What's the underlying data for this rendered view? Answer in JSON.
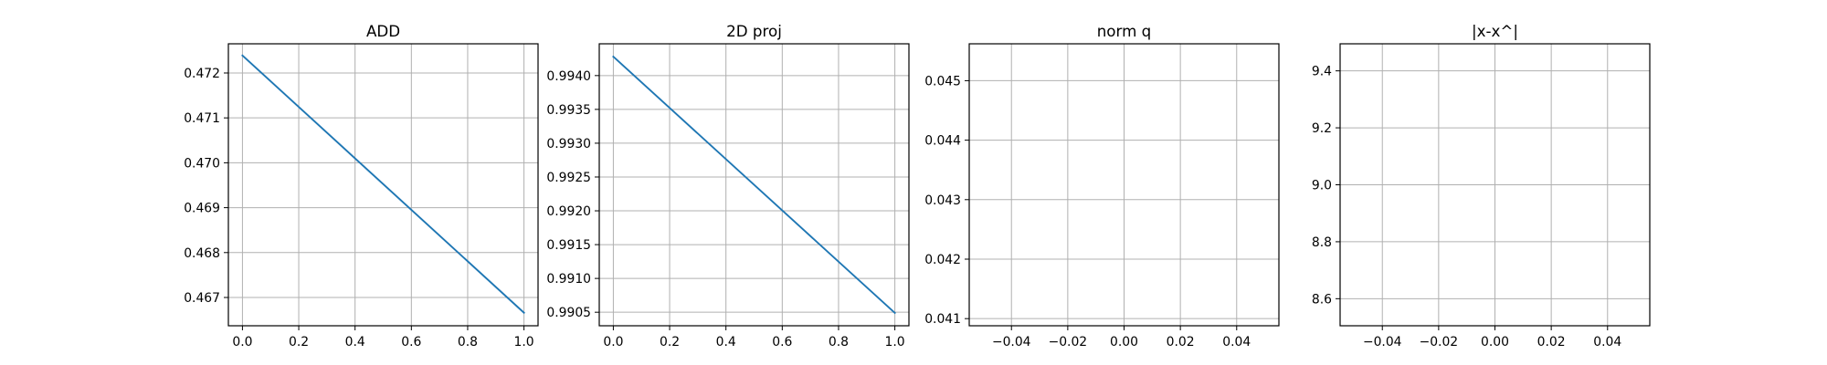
{
  "chart_data": [
    {
      "type": "line",
      "title": "ADD",
      "xlabel": "",
      "ylabel": "",
      "xlim": [
        -0.05,
        1.05
      ],
      "ylim": [
        0.46637,
        0.47265
      ],
      "xticks": [
        0.0,
        0.2,
        0.4,
        0.6,
        0.8,
        1.0
      ],
      "xtick_labels": [
        "0.0",
        "0.2",
        "0.4",
        "0.6",
        "0.8",
        "1.0"
      ],
      "yticks": [
        0.467,
        0.468,
        0.469,
        0.47,
        0.471,
        0.472
      ],
      "ytick_labels": [
        "0.467",
        "0.468",
        "0.469",
        "0.470",
        "0.471",
        "0.472"
      ],
      "grid": true,
      "series": [
        {
          "x": [
            0,
            1
          ],
          "y": [
            0.47239,
            0.46666
          ]
        }
      ]
    },
    {
      "type": "line",
      "title": "2D proj",
      "xlabel": "",
      "ylabel": "",
      "xlim": [
        -0.05,
        1.05
      ],
      "ylim": [
        0.9903,
        0.99447
      ],
      "xticks": [
        0.0,
        0.2,
        0.4,
        0.6,
        0.8,
        1.0
      ],
      "xtick_labels": [
        "0.0",
        "0.2",
        "0.4",
        "0.6",
        "0.8",
        "1.0"
      ],
      "yticks": [
        0.9905,
        0.991,
        0.9915,
        0.992,
        0.9925,
        0.993,
        0.9935,
        0.994
      ],
      "ytick_labels": [
        "0.9905",
        "0.9910",
        "0.9915",
        "0.9920",
        "0.9925",
        "0.9930",
        "0.9935",
        "0.9940"
      ],
      "grid": true,
      "series": [
        {
          "x": [
            0,
            1
          ],
          "y": [
            0.99428,
            0.99049
          ]
        }
      ]
    },
    {
      "type": "line",
      "title": "norm q",
      "xlabel": "",
      "ylabel": "",
      "xlim": [
        -0.055,
        0.055
      ],
      "ylim": [
        0.04088,
        0.04562
      ],
      "xticks": [
        -0.04,
        -0.02,
        0.0,
        0.02,
        0.04
      ],
      "xtick_labels": [
        "−0.04",
        "−0.02",
        "0.00",
        "0.02",
        "0.04"
      ],
      "yticks": [
        0.041,
        0.042,
        0.043,
        0.044,
        0.045
      ],
      "ytick_labels": [
        "0.041",
        "0.042",
        "0.043",
        "0.044",
        "0.045"
      ],
      "grid": true,
      "series": []
    },
    {
      "type": "line",
      "title": "|x-x^|",
      "xlabel": "",
      "ylabel": "",
      "xlim": [
        -0.055,
        0.055
      ],
      "ylim": [
        8.505,
        9.495
      ],
      "xticks": [
        -0.04,
        -0.02,
        0.0,
        0.02,
        0.04
      ],
      "xtick_labels": [
        "−0.04",
        "−0.02",
        "0.00",
        "0.02",
        "0.04"
      ],
      "yticks": [
        8.6,
        8.8,
        9.0,
        9.2,
        9.4
      ],
      "ytick_labels": [
        "8.6",
        "8.8",
        "9.0",
        "9.2",
        "9.4"
      ],
      "grid": true,
      "series": []
    }
  ],
  "colors": {
    "series": "#1f77b4",
    "grid": "#b0b0b0",
    "frame": "#000000",
    "background": "#ffffff"
  }
}
